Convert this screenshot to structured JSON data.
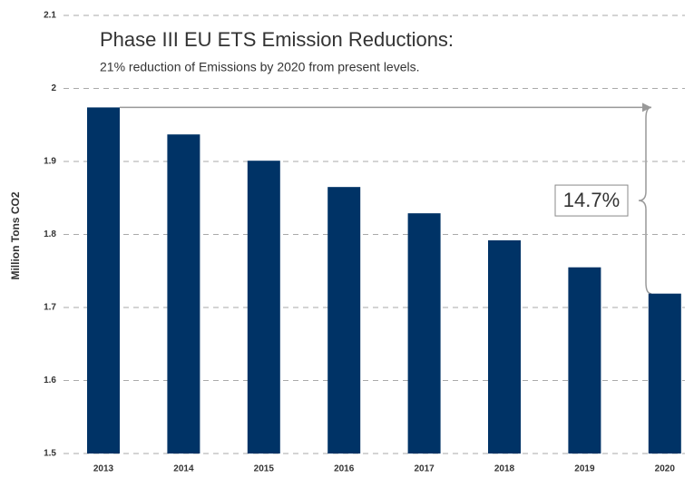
{
  "chart_data": {
    "type": "bar",
    "title": "Phase III EU ETS Emission Reductions:",
    "subtitle": "21% reduction of Emissions by 2020 from present levels.",
    "y_label": "Million Tons CO2",
    "annotation": "14.7%",
    "categories": [
      "2013",
      "2014",
      "2015",
      "2016",
      "2017",
      "2018",
      "2019",
      "2020"
    ],
    "values": [
      1.974,
      1.937,
      1.901,
      1.865,
      1.829,
      1.792,
      1.755,
      1.719
    ],
    "color": "#003366",
    "ylim": [
      1.5,
      2.1
    ],
    "yticks": [
      1.5,
      1.6,
      1.7,
      1.8,
      1.9,
      2,
      2.1
    ],
    "grid": true
  }
}
